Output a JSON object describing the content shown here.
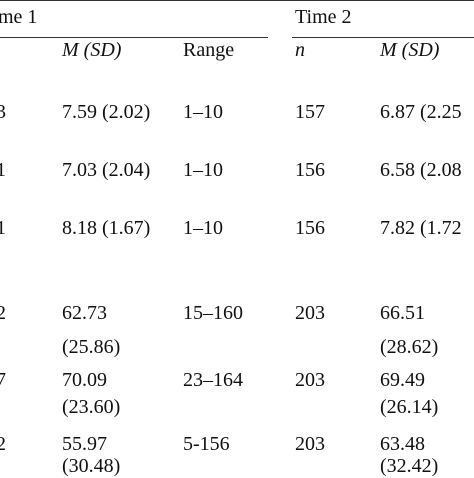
{
  "table": {
    "groups": [
      "me 1",
      "Time 2"
    ],
    "columns": [
      "M (SD)",
      "Range",
      "n",
      "M (SD)"
    ],
    "rows": [
      [
        [
          "3"
        ],
        [
          "7.59 (2.02)"
        ],
        [
          "1–10"
        ],
        [
          "157"
        ],
        [
          "6.87 (2.25"
        ]
      ],
      [
        [
          "1"
        ],
        [
          "7.03 (2.04)"
        ],
        [
          "1–10"
        ],
        [
          "156"
        ],
        [
          "6.58 (2.08"
        ]
      ],
      [
        [
          "1"
        ],
        [
          "8.18 (1.67)"
        ],
        [
          "1–10"
        ],
        [
          "156"
        ],
        [
          "7.82 (1.72"
        ]
      ],
      [
        [
          "2"
        ],
        [
          "62.73",
          "(25.86)"
        ],
        [
          "15–160"
        ],
        [
          "203"
        ],
        [
          "66.51",
          "(28.62)"
        ]
      ],
      [
        [
          "7"
        ],
        [
          "70.09",
          "(23.60)"
        ],
        [
          "23–164"
        ],
        [
          "203"
        ],
        [
          "69.49",
          "(26.14)"
        ]
      ],
      [
        [
          "2"
        ],
        [
          "55.97",
          "(30.48)"
        ],
        [
          "5-156"
        ],
        [
          "203"
        ],
        [
          "63.48",
          "(32.42)"
        ]
      ]
    ]
  }
}
